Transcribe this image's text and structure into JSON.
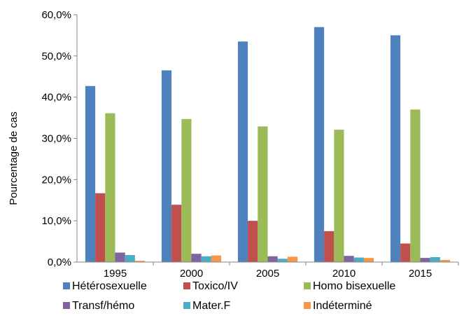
{
  "chart_data": {
    "type": "bar",
    "title": "",
    "xlabel": "",
    "ylabel": "Pourcentage de cas",
    "ylim": [
      0,
      60
    ],
    "y_ticks": [
      "0,0%",
      "10,0%",
      "20,0%",
      "30,0%",
      "40,0%",
      "50,0%",
      "60,0%"
    ],
    "grid": false,
    "legend_position": "bottom",
    "categories": [
      "1995",
      "2000",
      "2005",
      "2010",
      "2015"
    ],
    "series": [
      {
        "name": "Hétérosexuelle",
        "color": "#4F81BD",
        "values": [
          42.7,
          46.5,
          53.5,
          57.0,
          55.0
        ]
      },
      {
        "name": "Toxico/IV",
        "color": "#C0504D",
        "values": [
          16.7,
          13.9,
          10.0,
          7.5,
          4.5
        ]
      },
      {
        "name": "Homo bisexuelle",
        "color": "#9BBB59",
        "values": [
          36.1,
          34.7,
          32.9,
          32.1,
          37.0
        ]
      },
      {
        "name": "Transf/hémo",
        "color": "#8064A2",
        "values": [
          2.3,
          2.0,
          1.4,
          1.5,
          1.0
        ]
      },
      {
        "name": "Mater.F",
        "color": "#4BACC6",
        "values": [
          1.7,
          1.4,
          0.8,
          1.1,
          1.2
        ]
      },
      {
        "name": "Indéterminé",
        "color": "#F79646",
        "values": [
          0.3,
          1.6,
          1.3,
          1.0,
          0.5
        ]
      }
    ]
  }
}
